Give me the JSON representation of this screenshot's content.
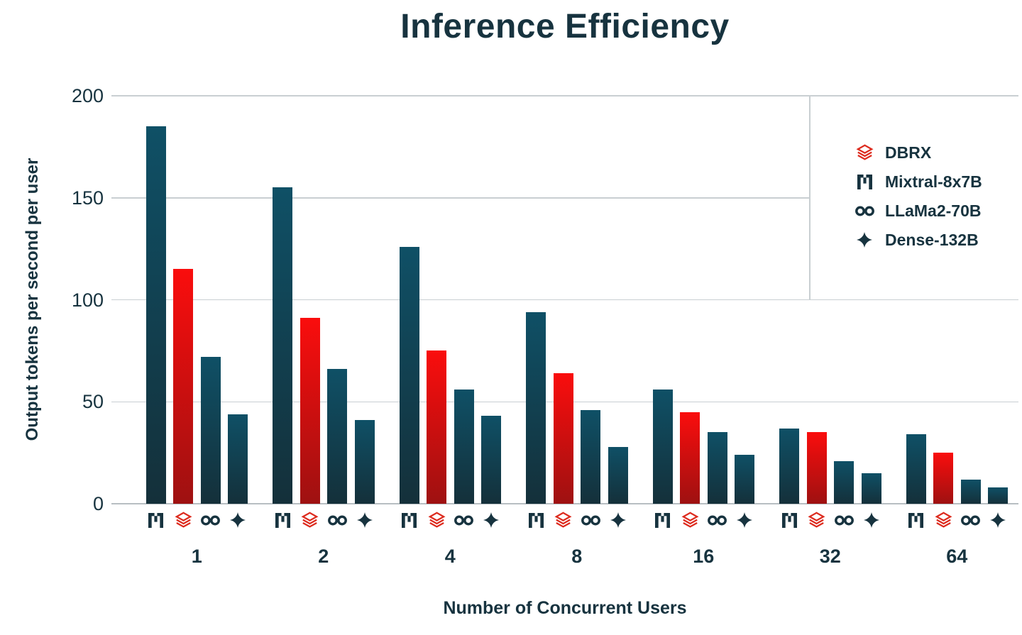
{
  "title": "Inference Efficiency",
  "axes": {
    "y_label": "Output tokens per second per user",
    "x_label": "Number of Concurrent Users"
  },
  "legend": {
    "position": "upper-right",
    "items": [
      {
        "label": "DBRX",
        "icon": "dbrx-icon"
      },
      {
        "label": "Mixtral-8x7B",
        "icon": "mixtral-icon"
      },
      {
        "label": "LLaMa2-70B",
        "icon": "llama-icon"
      },
      {
        "label": "Dense-132B",
        "icon": "dense-icon"
      }
    ]
  },
  "chart_data": {
    "type": "bar",
    "title": "Inference Efficiency",
    "xlabel": "Number of Concurrent Users",
    "ylabel": "Output tokens per second per user",
    "categories": [
      "1",
      "2",
      "4",
      "8",
      "16",
      "32",
      "64"
    ],
    "yticks": [
      0,
      50,
      100,
      150,
      200
    ],
    "ylim": [
      0,
      200
    ],
    "grid": "horizontal",
    "legend_position": "upper-right",
    "series": [
      {
        "name": "Mixtral-8x7B",
        "icon": "mixtral-icon",
        "color_top": "#0F5066",
        "color_bottom": "#14303A",
        "values": [
          185,
          155,
          126,
          94,
          56,
          37,
          34
        ]
      },
      {
        "name": "DBRX",
        "icon": "dbrx-icon",
        "color_top": "#FA0D0D",
        "color_bottom": "#9E1111",
        "values": [
          115,
          91,
          75,
          64,
          45,
          35,
          25
        ]
      },
      {
        "name": "LLaMa2-70B",
        "icon": "llama-icon",
        "color_top": "#0F5066",
        "color_bottom": "#14303A",
        "values": [
          72,
          66,
          56,
          46,
          35,
          21,
          12
        ]
      },
      {
        "name": "Dense-132B",
        "icon": "dense-icon",
        "color_top": "#0F5066",
        "color_bottom": "#14303A",
        "values": [
          44,
          41,
          43,
          28,
          24,
          15,
          8
        ]
      }
    ]
  },
  "colors": {
    "text": "#17333F",
    "icon_teal": "#17333F",
    "dbrx_red": "#DD2B1E",
    "grid": "#C9CFD2",
    "axis_line": "#B7BEC2",
    "bar_teal_top": "#0F5066",
    "bar_teal_bottom": "#14303A",
    "bar_red_top": "#FA0D0D",
    "bar_red_bottom": "#9E1111"
  }
}
